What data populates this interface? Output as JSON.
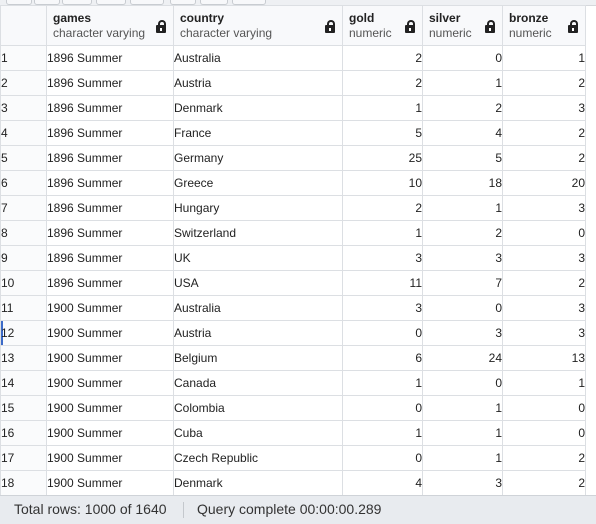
{
  "columns": [
    {
      "name": "games",
      "type": "character varying"
    },
    {
      "name": "country",
      "type": "character varying"
    },
    {
      "name": "gold",
      "type": "numeric"
    },
    {
      "name": "silver",
      "type": "numeric"
    },
    {
      "name": "bronze",
      "type": "numeric"
    }
  ],
  "rows": [
    {
      "n": "1",
      "games": "1896 Summer",
      "country": "Australia",
      "gold": "2",
      "silver": "0",
      "bronze": "1"
    },
    {
      "n": "2",
      "games": "1896 Summer",
      "country": "Austria",
      "gold": "2",
      "silver": "1",
      "bronze": "2"
    },
    {
      "n": "3",
      "games": "1896 Summer",
      "country": "Denmark",
      "gold": "1",
      "silver": "2",
      "bronze": "3"
    },
    {
      "n": "4",
      "games": "1896 Summer",
      "country": "France",
      "gold": "5",
      "silver": "4",
      "bronze": "2"
    },
    {
      "n": "5",
      "games": "1896 Summer",
      "country": "Germany",
      "gold": "25",
      "silver": "5",
      "bronze": "2"
    },
    {
      "n": "6",
      "games": "1896 Summer",
      "country": "Greece",
      "gold": "10",
      "silver": "18",
      "bronze": "20"
    },
    {
      "n": "7",
      "games": "1896 Summer",
      "country": "Hungary",
      "gold": "2",
      "silver": "1",
      "bronze": "3"
    },
    {
      "n": "8",
      "games": "1896 Summer",
      "country": "Switzerland",
      "gold": "1",
      "silver": "2",
      "bronze": "0"
    },
    {
      "n": "9",
      "games": "1896 Summer",
      "country": "UK",
      "gold": "3",
      "silver": "3",
      "bronze": "3"
    },
    {
      "n": "10",
      "games": "1896 Summer",
      "country": "USA",
      "gold": "11",
      "silver": "7",
      "bronze": "2"
    },
    {
      "n": "11",
      "games": "1900 Summer",
      "country": "Australia",
      "gold": "3",
      "silver": "0",
      "bronze": "3"
    },
    {
      "n": "12",
      "games": "1900 Summer",
      "country": "Austria",
      "gold": "0",
      "silver": "3",
      "bronze": "3"
    },
    {
      "n": "13",
      "games": "1900 Summer",
      "country": "Belgium",
      "gold": "6",
      "silver": "24",
      "bronze": "13"
    },
    {
      "n": "14",
      "games": "1900 Summer",
      "country": "Canada",
      "gold": "1",
      "silver": "0",
      "bronze": "1"
    },
    {
      "n": "15",
      "games": "1900 Summer",
      "country": "Colombia",
      "gold": "0",
      "silver": "1",
      "bronze": "0"
    },
    {
      "n": "16",
      "games": "1900 Summer",
      "country": "Cuba",
      "gold": "1",
      "silver": "1",
      "bronze": "0"
    },
    {
      "n": "17",
      "games": "1900 Summer",
      "country": "Czech Republic",
      "gold": "0",
      "silver": "1",
      "bronze": "2"
    },
    {
      "n": "18",
      "games": "1900 Summer",
      "country": "Denmark",
      "gold": "4",
      "silver": "3",
      "bronze": "2"
    }
  ],
  "active_row": 12,
  "status": {
    "rows": "Total rows: 1000 of 1640",
    "query": "Query complete 00:00:00.289"
  },
  "icons": {
    "header_lock": "lock-icon"
  }
}
